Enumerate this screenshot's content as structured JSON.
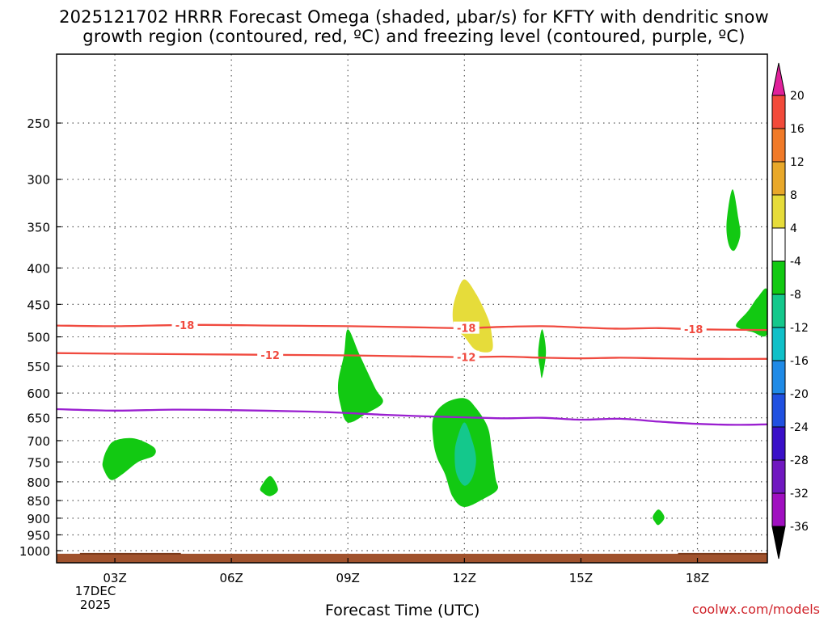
{
  "title": {
    "line1": "2025121702 HRRR Forecast Omega (shaded, μbar/s) for KFTY with dendritic snow",
    "line2": "growth region (contoured, red, ºC) and freezing level (contoured, purple, ºC)"
  },
  "credit": "coolwx.com/models",
  "colors": {
    "dgz_contour": "#f04a3f",
    "freezing_contour": "#9a1fd0",
    "ground": "#a0522d"
  },
  "chart_data": {
    "type": "heatmap",
    "xlabel": "Forecast Time (UTC)",
    "date_label": [
      "17DEC",
      "2025"
    ],
    "x_range_hours": [
      1.5,
      19.8
    ],
    "x_ticks": [
      {
        "hour": 3,
        "label": "03Z"
      },
      {
        "hour": 6,
        "label": "06Z"
      },
      {
        "hour": 9,
        "label": "09Z"
      },
      {
        "hour": 12,
        "label": "12Z"
      },
      {
        "hour": 15,
        "label": "15Z"
      },
      {
        "hour": 18,
        "label": "18Z"
      }
    ],
    "y_axis": "pressure (hPa), log scale",
    "y_range_hpa": [
      200,
      1040
    ],
    "y_ticks": [
      250,
      300,
      350,
      400,
      450,
      500,
      550,
      600,
      650,
      700,
      750,
      800,
      850,
      900,
      950,
      1000
    ],
    "grid": true,
    "colorbar": {
      "levels": [
        20,
        16,
        12,
        8,
        4,
        -4,
        -8,
        -12,
        -16,
        -20,
        -24,
        -28,
        -32,
        -36
      ],
      "colors": [
        "#e8003c",
        "#f24a3a",
        "#f07a28",
        "#e8a82a",
        "#e6dc3a",
        "#ffffff",
        "#12c912",
        "#14c88c",
        "#10c0c8",
        "#1f8ae6",
        "#2050e0",
        "#3a10c8",
        "#7018c0",
        "#a010c0",
        "#aaaaaa"
      ],
      "top_triangle_color": "#e0209a",
      "bottom_triangle_color": "#000000"
    },
    "shaded_regions": [
      {
        "value_range": "-4 to -8",
        "color": "#12c912",
        "points": [
          [
            2.7,
            745
          ],
          [
            2.8,
            720
          ],
          [
            3.0,
            700
          ],
          [
            3.5,
            695
          ],
          [
            4.0,
            715
          ],
          [
            4.0,
            735
          ],
          [
            3.6,
            750
          ],
          [
            3.2,
            780
          ],
          [
            2.9,
            795
          ],
          [
            2.7,
            765
          ]
        ]
      },
      {
        "value_range": "-4 to -8",
        "color": "#12c912",
        "points": [
          [
            6.75,
            815
          ],
          [
            7.0,
            785
          ],
          [
            7.2,
            820
          ],
          [
            7.0,
            838
          ],
          [
            6.8,
            828
          ]
        ]
      },
      {
        "value_range": "-4 to -8",
        "color": "#12c912",
        "points": [
          [
            8.75,
            580
          ],
          [
            8.9,
            530
          ],
          [
            9.0,
            488
          ],
          [
            9.3,
            530
          ],
          [
            9.7,
            590
          ],
          [
            9.9,
            618
          ],
          [
            9.5,
            640
          ],
          [
            9.0,
            660
          ],
          [
            8.8,
            620
          ]
        ]
      },
      {
        "value_range": "4 to 8",
        "color": "#e6dc3a",
        "points": [
          [
            11.7,
            460
          ],
          [
            11.8,
            435
          ],
          [
            12.0,
            415
          ],
          [
            12.3,
            435
          ],
          [
            12.6,
            470
          ],
          [
            12.7,
            495
          ],
          [
            12.7,
            523
          ],
          [
            12.3,
            522
          ],
          [
            12.0,
            500
          ],
          [
            11.75,
            485
          ]
        ]
      },
      {
        "value_range": "-4 to -8",
        "color": "#12c912",
        "points": [
          [
            11.2,
            700
          ],
          [
            11.2,
            650
          ],
          [
            11.5,
            620
          ],
          [
            12.0,
            610
          ],
          [
            12.3,
            630
          ],
          [
            12.6,
            670
          ],
          [
            12.7,
            720
          ],
          [
            12.8,
            790
          ],
          [
            12.85,
            820
          ],
          [
            12.5,
            845
          ],
          [
            12.0,
            868
          ],
          [
            11.7,
            840
          ],
          [
            11.5,
            780
          ],
          [
            11.3,
            740
          ]
        ]
      },
      {
        "value_range": "-8 to -12",
        "color": "#14c88c",
        "points": [
          [
            11.75,
            735
          ],
          [
            11.8,
            700
          ],
          [
            12.0,
            660
          ],
          [
            12.2,
            700
          ],
          [
            12.3,
            745
          ],
          [
            12.2,
            790
          ],
          [
            12.0,
            810
          ],
          [
            11.8,
            780
          ]
        ]
      },
      {
        "value_range": "-4 to -8",
        "color": "#12c912",
        "points": [
          [
            13.9,
            525
          ],
          [
            14.0,
            488
          ],
          [
            14.1,
            525
          ],
          [
            14.0,
            570
          ],
          [
            13.95,
            555
          ]
        ]
      },
      {
        "value_range": "-4 to -8",
        "color": "#12c912",
        "points": [
          [
            16.85,
            895
          ],
          [
            17.0,
            875
          ],
          [
            17.15,
            898
          ],
          [
            17.0,
            920
          ],
          [
            16.9,
            910
          ]
        ]
      },
      {
        "value_range": "-4 to -8",
        "color": "#12c912",
        "points": [
          [
            18.75,
            345
          ],
          [
            18.9,
            310
          ],
          [
            19.05,
            340
          ],
          [
            19.1,
            360
          ],
          [
            18.95,
            378
          ],
          [
            18.8,
            370
          ]
        ]
      },
      {
        "value_range": "-4 to -8",
        "color": "#12c912",
        "points": [
          [
            19.0,
            480
          ],
          [
            19.3,
            460
          ],
          [
            19.55,
            440
          ],
          [
            19.8,
            430
          ],
          [
            19.8,
            495
          ],
          [
            19.4,
            492
          ],
          [
            19.1,
            487
          ]
        ]
      }
    ],
    "contours": [
      {
        "label": "-18",
        "color": "#f04a3f",
        "label_positions_hours": [
          4.8,
          12.05,
          17.9
        ],
        "points": [
          [
            1.5,
            482
          ],
          [
            3,
            483
          ],
          [
            5,
            481
          ],
          [
            7,
            482
          ],
          [
            9,
            483
          ],
          [
            11,
            485
          ],
          [
            12,
            486
          ],
          [
            13,
            484
          ],
          [
            14,
            483
          ],
          [
            15,
            485
          ],
          [
            16,
            487
          ],
          [
            17,
            486
          ],
          [
            18,
            488
          ],
          [
            19.8,
            489
          ]
        ]
      },
      {
        "label": "-12",
        "color": "#f04a3f",
        "label_positions_hours": [
          7.0,
          12.05
        ],
        "points": [
          [
            1.5,
            527
          ],
          [
            3,
            528
          ],
          [
            5,
            529
          ],
          [
            7,
            530
          ],
          [
            9,
            531
          ],
          [
            11,
            533
          ],
          [
            12,
            534
          ],
          [
            13,
            533
          ],
          [
            14,
            535
          ],
          [
            15,
            536
          ],
          [
            16,
            535
          ],
          [
            17,
            536
          ],
          [
            18,
            537
          ],
          [
            19.8,
            537
          ]
        ]
      },
      {
        "label": "0",
        "color": "#9a1fd0",
        "label_positions_hours": [],
        "points": [
          [
            1.5,
            632
          ],
          [
            3,
            635
          ],
          [
            4.5,
            633
          ],
          [
            6,
            634
          ],
          [
            8,
            637
          ],
          [
            9,
            640
          ],
          [
            10,
            644
          ],
          [
            11,
            647
          ],
          [
            12,
            649
          ],
          [
            13,
            651
          ],
          [
            14,
            650
          ],
          [
            15,
            654
          ],
          [
            16,
            652
          ],
          [
            17,
            658
          ],
          [
            18,
            663
          ],
          [
            19,
            665
          ],
          [
            19.8,
            664
          ]
        ]
      }
    ],
    "ground_pressure_hpa": 1010
  }
}
